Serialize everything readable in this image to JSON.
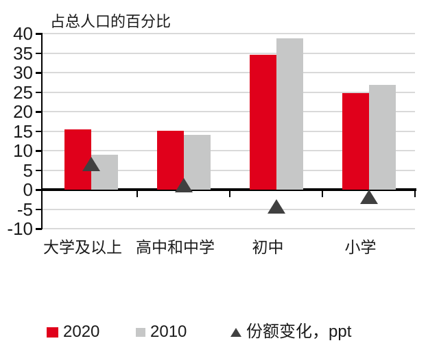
{
  "chart_data": {
    "type": "bar",
    "title": "占总人口的百分比",
    "categories": [
      "大学及以上",
      "高中和中学",
      "初中",
      "小学"
    ],
    "series": [
      {
        "name": "2020",
        "type": "bar",
        "color": "#e0001b",
        "values": [
          15.5,
          15.1,
          34.5,
          24.8
        ]
      },
      {
        "name": "2010",
        "type": "bar",
        "color": "#c6c7c7",
        "values": [
          8.9,
          14.0,
          38.8,
          26.8
        ]
      },
      {
        "name": "份额变化，ppt",
        "type": "triangle-marker",
        "color": "#404040",
        "values": [
          6.5,
          1.1,
          -4.3,
          -1.9
        ]
      }
    ],
    "ylim": [
      -10,
      40
    ],
    "ytick_step": 5,
    "yticks": [
      40,
      35,
      30,
      25,
      20,
      15,
      10,
      5,
      0,
      -5,
      -10
    ],
    "grid": true,
    "legend_position": "bottom",
    "colors": {
      "axis": "#000000",
      "gridline": "#d9d9d9",
      "text": "#1a1a1a",
      "background": "#ffffff"
    }
  }
}
